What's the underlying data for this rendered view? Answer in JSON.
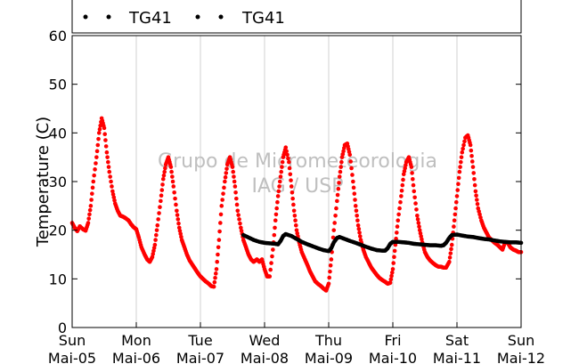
{
  "chart_data": {
    "type": "scatter",
    "ylabel": "Temperature (C)",
    "ylim": [
      0,
      60
    ],
    "yticks": [
      0,
      10,
      20,
      30,
      40,
      50,
      60
    ],
    "xlim_days": [
      0,
      7
    ],
    "x_ticks": [
      {
        "day": 0,
        "dow": "Sun",
        "date": "Mai-05"
      },
      {
        "day": 1,
        "dow": "Mon",
        "date": "Mai-06"
      },
      {
        "day": 2,
        "dow": "Tue",
        "date": "Mai-07"
      },
      {
        "day": 3,
        "dow": "Wed",
        "date": "Mai-08"
      },
      {
        "day": 4,
        "dow": "Thu",
        "date": "Mai-09"
      },
      {
        "day": 5,
        "dow": "Fri",
        "date": "Mai-10"
      },
      {
        "day": 6,
        "dow": "Sat",
        "date": "Mai-11"
      },
      {
        "day": 7,
        "dow": "Sun",
        "date": "Mai-12"
      }
    ],
    "grid": "vertical",
    "legend_location": "top",
    "watermark": [
      "Grupo de Micrometeorologia",
      "IAG / USP"
    ],
    "series": [
      {
        "name": "TG41",
        "color": "#ff0000",
        "points": [
          [
            0.0,
            21.5
          ],
          [
            0.04,
            20.5
          ],
          [
            0.08,
            19.8
          ],
          [
            0.12,
            20.8
          ],
          [
            0.17,
            20.2
          ],
          [
            0.21,
            19.9
          ],
          [
            0.25,
            21.5
          ],
          [
            0.29,
            25
          ],
          [
            0.33,
            30
          ],
          [
            0.38,
            35
          ],
          [
            0.42,
            40
          ],
          [
            0.46,
            43
          ],
          [
            0.5,
            41
          ],
          [
            0.54,
            36
          ],
          [
            0.58,
            32
          ],
          [
            0.63,
            28
          ],
          [
            0.67,
            25.5
          ],
          [
            0.71,
            24
          ],
          [
            0.75,
            23
          ],
          [
            0.79,
            22.8
          ],
          [
            0.83,
            22.5
          ],
          [
            0.88,
            22
          ],
          [
            0.92,
            21.2
          ],
          [
            0.96,
            20.6
          ],
          [
            1.0,
            20.2
          ],
          [
            1.04,
            18.5
          ],
          [
            1.08,
            16.5
          ],
          [
            1.13,
            15
          ],
          [
            1.17,
            14
          ],
          [
            1.21,
            13.5
          ],
          [
            1.25,
            14.5
          ],
          [
            1.29,
            17
          ],
          [
            1.33,
            21
          ],
          [
            1.38,
            26
          ],
          [
            1.42,
            30.5
          ],
          [
            1.46,
            33.5
          ],
          [
            1.5,
            35
          ],
          [
            1.54,
            33
          ],
          [
            1.58,
            29
          ],
          [
            1.63,
            24
          ],
          [
            1.67,
            20.5
          ],
          [
            1.71,
            18
          ],
          [
            1.75,
            16.5
          ],
          [
            1.79,
            15
          ],
          [
            1.83,
            13.8
          ],
          [
            1.88,
            12.8
          ],
          [
            1.92,
            12
          ],
          [
            1.96,
            11.2
          ],
          [
            2.0,
            10.5
          ],
          [
            2.04,
            10
          ],
          [
            2.08,
            9.5
          ],
          [
            2.13,
            9
          ],
          [
            2.17,
            8.5
          ],
          [
            2.21,
            8.4
          ],
          [
            2.25,
            12
          ],
          [
            2.29,
            18
          ],
          [
            2.33,
            25
          ],
          [
            2.38,
            30
          ],
          [
            2.42,
            33.5
          ],
          [
            2.46,
            35
          ],
          [
            2.5,
            33
          ],
          [
            2.54,
            29
          ],
          [
            2.58,
            24
          ],
          [
            2.63,
            20.5
          ],
          [
            2.67,
            18
          ],
          [
            2.71,
            16.5
          ],
          [
            2.75,
            15
          ],
          [
            2.79,
            14
          ],
          [
            2.83,
            13.5
          ],
          [
            2.88,
            14
          ],
          [
            2.92,
            13.5
          ],
          [
            2.96,
            14
          ],
          [
            3.0,
            12
          ],
          [
            3.04,
            10.5
          ],
          [
            3.08,
            10.5
          ],
          [
            3.13,
            16
          ],
          [
            3.17,
            22
          ],
          [
            3.21,
            27
          ],
          [
            3.25,
            31
          ],
          [
            3.29,
            35
          ],
          [
            3.33,
            37
          ],
          [
            3.38,
            34
          ],
          [
            3.42,
            29
          ],
          [
            3.46,
            24
          ],
          [
            3.5,
            20
          ],
          [
            3.54,
            17.5
          ],
          [
            3.58,
            15.5
          ],
          [
            3.63,
            14
          ],
          [
            3.67,
            12.8
          ],
          [
            3.71,
            11.5
          ],
          [
            3.75,
            10.5
          ],
          [
            3.79,
            9.5
          ],
          [
            3.83,
            9
          ],
          [
            3.88,
            8.5
          ],
          [
            3.92,
            8
          ],
          [
            3.96,
            7.6
          ],
          [
            4.0,
            9
          ],
          [
            4.04,
            14
          ],
          [
            4.08,
            20
          ],
          [
            4.13,
            26
          ],
          [
            4.17,
            31
          ],
          [
            4.21,
            35
          ],
          [
            4.25,
            37.5
          ],
          [
            4.29,
            37.8
          ],
          [
            4.33,
            35.5
          ],
          [
            4.38,
            30
          ],
          [
            4.42,
            25
          ],
          [
            4.46,
            21
          ],
          [
            4.5,
            18
          ],
          [
            4.54,
            16
          ],
          [
            4.58,
            14.5
          ],
          [
            4.63,
            13.2
          ],
          [
            4.67,
            12.2
          ],
          [
            4.71,
            11.5
          ],
          [
            4.75,
            10.8
          ],
          [
            4.79,
            10.2
          ],
          [
            4.83,
            9.8
          ],
          [
            4.88,
            9.4
          ],
          [
            4.92,
            9
          ],
          [
            4.96,
            9.2
          ],
          [
            5.0,
            12
          ],
          [
            5.04,
            17
          ],
          [
            5.08,
            22
          ],
          [
            5.13,
            27
          ],
          [
            5.17,
            31.5
          ],
          [
            5.21,
            34
          ],
          [
            5.25,
            35
          ],
          [
            5.29,
            33
          ],
          [
            5.33,
            28
          ],
          [
            5.38,
            23
          ],
          [
            5.42,
            20
          ],
          [
            5.46,
            17.5
          ],
          [
            5.5,
            15.5
          ],
          [
            5.54,
            14.5
          ],
          [
            5.58,
            13.8
          ],
          [
            5.63,
            13.2
          ],
          [
            5.67,
            12.8
          ],
          [
            5.71,
            12.5
          ],
          [
            5.75,
            12.5
          ],
          [
            5.79,
            12.3
          ],
          [
            5.83,
            12.3
          ],
          [
            5.88,
            13.5
          ],
          [
            5.92,
            17
          ],
          [
            5.96,
            22
          ],
          [
            6.0,
            27
          ],
          [
            6.04,
            32
          ],
          [
            6.08,
            36
          ],
          [
            6.13,
            39
          ],
          [
            6.17,
            39.5
          ],
          [
            6.21,
            37.5
          ],
          [
            6.25,
            33
          ],
          [
            6.29,
            28
          ],
          [
            6.33,
            24.5
          ],
          [
            6.38,
            22
          ],
          [
            6.42,
            20.5
          ],
          [
            6.46,
            19.5
          ],
          [
            6.5,
            18.5
          ],
          [
            6.54,
            18
          ],
          [
            6.58,
            17.5
          ],
          [
            6.63,
            17
          ],
          [
            6.67,
            16.5
          ],
          [
            6.71,
            16
          ],
          [
            6.75,
            17.5
          ],
          [
            6.79,
            17.5
          ],
          [
            6.83,
            16.5
          ],
          [
            6.88,
            16
          ],
          [
            6.92,
            15.8
          ],
          [
            6.96,
            15.5
          ],
          [
            7.0,
            15.5
          ]
        ]
      },
      {
        "name": "TG41",
        "color": "#000000",
        "points": [
          [
            2.67,
            19
          ],
          [
            2.75,
            18.5
          ],
          [
            2.83,
            18
          ],
          [
            2.92,
            17.6
          ],
          [
            3.0,
            17.4
          ],
          [
            3.08,
            17.3
          ],
          [
            3.17,
            17.2
          ],
          [
            3.21,
            17.1
          ],
          [
            3.25,
            17.8
          ],
          [
            3.29,
            18.8
          ],
          [
            3.33,
            19.2
          ],
          [
            3.42,
            18.8
          ],
          [
            3.5,
            18.2
          ],
          [
            3.58,
            17.6
          ],
          [
            3.67,
            17.1
          ],
          [
            3.75,
            16.7
          ],
          [
            3.83,
            16.3
          ],
          [
            3.92,
            15.9
          ],
          [
            4.0,
            15.7
          ],
          [
            4.04,
            16.3
          ],
          [
            4.08,
            17.5
          ],
          [
            4.13,
            18.4
          ],
          [
            4.17,
            18.6
          ],
          [
            4.25,
            18.2
          ],
          [
            4.33,
            17.8
          ],
          [
            4.42,
            17.4
          ],
          [
            4.5,
            17
          ],
          [
            4.58,
            16.6
          ],
          [
            4.67,
            16.2
          ],
          [
            4.75,
            15.9
          ],
          [
            4.83,
            15.8
          ],
          [
            4.88,
            15.8
          ],
          [
            4.92,
            16.3
          ],
          [
            4.96,
            17.2
          ],
          [
            5.0,
            17.6
          ],
          [
            5.08,
            17.6
          ],
          [
            5.17,
            17.5
          ],
          [
            5.25,
            17.4
          ],
          [
            5.33,
            17.2
          ],
          [
            5.42,
            17.1
          ],
          [
            5.5,
            17
          ],
          [
            5.58,
            16.9
          ],
          [
            5.67,
            16.9
          ],
          [
            5.75,
            16.8
          ],
          [
            5.79,
            16.9
          ],
          [
            5.83,
            17.4
          ],
          [
            5.88,
            18.4
          ],
          [
            5.92,
            19
          ],
          [
            6.0,
            19.1
          ],
          [
            6.08,
            18.9
          ],
          [
            6.17,
            18.7
          ],
          [
            6.25,
            18.6
          ],
          [
            6.33,
            18.4
          ],
          [
            6.42,
            18.2
          ],
          [
            6.5,
            18.1
          ],
          [
            6.58,
            17.9
          ],
          [
            6.67,
            17.7
          ],
          [
            6.75,
            17.6
          ],
          [
            6.83,
            17.5
          ],
          [
            6.92,
            17.5
          ],
          [
            7.0,
            17.4
          ]
        ]
      }
    ]
  }
}
